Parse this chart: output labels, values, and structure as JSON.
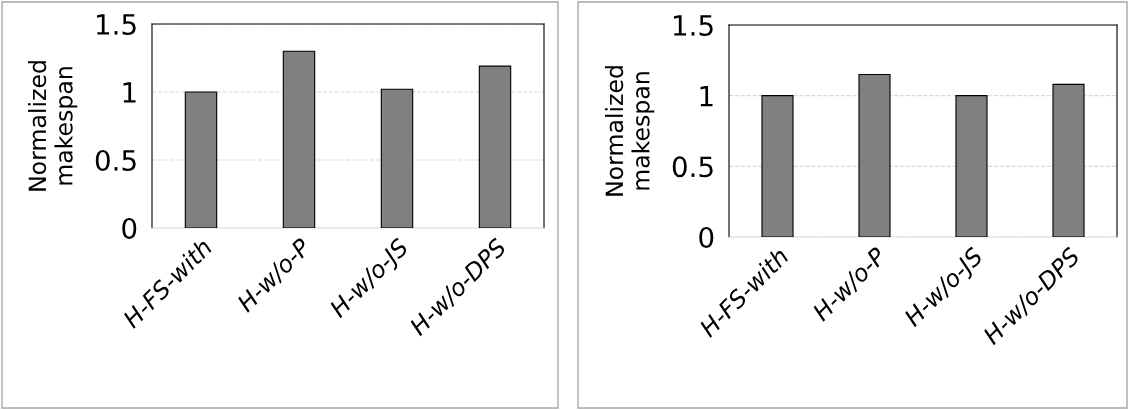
{
  "chart_data": [
    {
      "type": "bar",
      "ylabel": "Normalized\nmakespan",
      "categories": [
        "H-FS-with",
        "H-w/o-P",
        "H-w/o-JS",
        "H-w/o-DPS"
      ],
      "values": [
        1.0,
        1.3,
        1.02,
        1.19
      ],
      "color": "#808080",
      "ylim": [
        0,
        1.5
      ],
      "yticks": [
        0,
        0.5,
        1,
        1.5
      ],
      "grid": "y"
    },
    {
      "type": "bar",
      "ylabel": "Normalized\nmakespan",
      "categories": [
        "H-FS-with",
        "H-w/o-P",
        "H-w/o-JS",
        "H-w/o-DPS"
      ],
      "values": [
        1.0,
        1.15,
        1.0,
        1.08
      ],
      "color": "#808080",
      "ylim": [
        0,
        1.5
      ],
      "yticks": [
        0,
        0.5,
        1,
        1.5
      ],
      "grid": "y"
    }
  ]
}
